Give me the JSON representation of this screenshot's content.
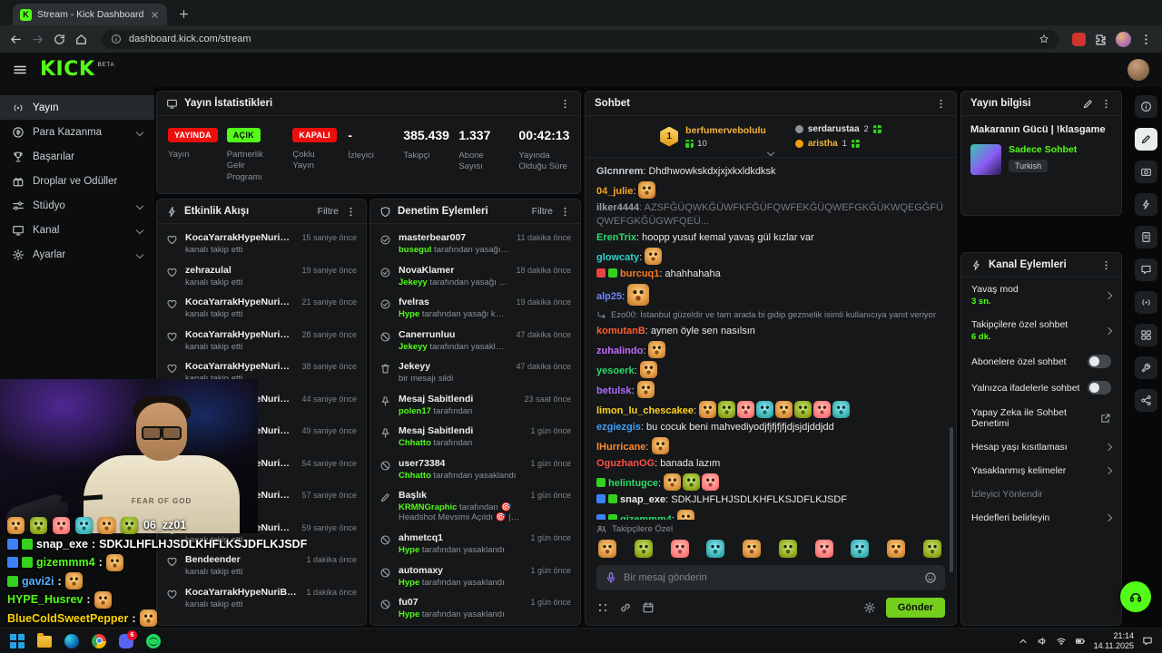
{
  "browser": {
    "favicon_letter": "K",
    "tab_title": "Stream - Kick Dashboard",
    "url": "dashboard.kick.com/stream"
  },
  "app": {
    "logo_text": "KICK",
    "logo_beta": "BETA"
  },
  "sidebar": [
    {
      "label": "Yayın",
      "icon": "signal",
      "active": true,
      "chevron": false
    },
    {
      "label": "Para Kazanma",
      "icon": "money",
      "chevron": true
    },
    {
      "label": "Başarılar",
      "icon": "trophy",
      "chevron": false
    },
    {
      "label": "Droplar ve Ödüller",
      "icon": "gift",
      "chevron": false
    },
    {
      "label": "Stüdyo",
      "icon": "sliders",
      "chevron": true
    },
    {
      "label": "Kanal",
      "icon": "monitor",
      "chevron": true
    },
    {
      "label": "Ayarlar",
      "icon": "gear",
      "chevron": true
    }
  ],
  "stats": {
    "title": "Yayın İstatistikleri",
    "items": [
      {
        "badge": "YAYINDA",
        "badge_style": "red",
        "label": "Yayın"
      },
      {
        "badge": "AÇIK",
        "badge_style": "green",
        "label": "Partnerlik Gelir Programı"
      },
      {
        "badge": "KAPALI",
        "badge_style": "red",
        "label": "Çoklu Yayın"
      },
      {
        "value": "-",
        "label": "İzleyici"
      },
      {
        "value": "385.439",
        "label": "Takipçi"
      },
      {
        "value": "1.337",
        "label": "Abone Sayısı"
      },
      {
        "value": "00:42:13",
        "label": "Yayında Olduğu Süre"
      }
    ]
  },
  "activity": {
    "title": "Etkinlik Akışı",
    "filter": "Filtre",
    "events": [
      {
        "user": "KocaYarrakHypeNuriBlush",
        "action": "kanalı takip etti",
        "time": "15 saniye önce"
      },
      {
        "user": "zehrazulal",
        "action": "kanalı takip etti",
        "time": "19 saniye önce"
      },
      {
        "user": "KocaYarrakHypeNuriBlush",
        "action": "kanalı takip etti",
        "time": "21 saniye önce"
      },
      {
        "user": "KocaYarrakHypeNuriBlush",
        "action": "kanalı takip etti",
        "time": "28 saniye önce"
      },
      {
        "user": "KocaYarrakHypeNuriBlush",
        "action": "kanalı takip etti",
        "time": "38 saniye önce"
      },
      {
        "user": "KocaYarrakHypeNuriBlush",
        "action": "kanalı takip etti",
        "time": "44 saniye önce"
      },
      {
        "user": "KocaYarrakHypeNuriBlush",
        "action": "kanalı takip etti",
        "time": "49 saniye önce"
      },
      {
        "user": "KocaYarrakHypeNuriBlush",
        "action": "kanalı takip etti",
        "time": "54 saniye önce"
      },
      {
        "user": "KocaYarrakHypeNuriBlush",
        "action": "kanalı takip etti",
        "time": "57 saniye önce"
      },
      {
        "user": "KocaYarrakHypeNuriBlush",
        "action": "kanalı takip etti",
        "time": "59 saniye önce"
      },
      {
        "user": "Bendeender",
        "action": "kanalı takip etti",
        "time": "1 dakika önce"
      },
      {
        "user": "KocaYarrakHypeNuriBlush",
        "action": "kanalı takip etti",
        "time": "1 dakika önce"
      }
    ]
  },
  "moderation": {
    "title": "Denetim Eylemleri",
    "filter": "Filtre",
    "events": [
      {
        "icon": "unban",
        "user": "masterbear007",
        "by": "busegul",
        "desc": "tarafından yasağı kaldırıldı",
        "time": "11 dakika önce"
      },
      {
        "icon": "unban",
        "user": "NovaKlamer",
        "by": "Jekeyy",
        "desc": "tarafından yasağı kaldırıldı",
        "time": "18 dakika önce"
      },
      {
        "icon": "unban",
        "user": "fvelras",
        "by": "Hype",
        "desc": "tarafından yasağı kaldırıldı",
        "time": "19 dakika önce"
      },
      {
        "icon": "ban",
        "user": "Canerrunluu",
        "by": "Jekeyy",
        "desc": "tarafından yasaklandı",
        "time": "47 dakika önce"
      },
      {
        "icon": "trash",
        "user": "Jekeyy",
        "by": "",
        "desc": "bir mesajı sildi",
        "time": "47 dakika önce"
      },
      {
        "icon": "pin",
        "user": "Mesaj Sabitlendi",
        "by": "polen17",
        "desc": "tarafından",
        "time": "23 saat önce"
      },
      {
        "icon": "pin",
        "user": "Mesaj Sabitlendi",
        "by": "Chhatto",
        "desc": "tarafından",
        "time": "1 gün önce"
      },
      {
        "icon": "ban",
        "user": "user73384",
        "by": "Chhatto",
        "desc": "tarafından yasaklandı",
        "time": "1 gün önce"
      },
      {
        "icon": "pen",
        "user": "Başlık",
        "by": "KRMNGraphic",
        "desc": "tarafından 🎯 Headshot Mevsimi Açıldı 🎯 | !klasgame olarak değiştirildi",
        "time": "1 gün önce",
        "tall": true
      },
      {
        "icon": "ban",
        "user": "ahmetcq1",
        "by": "Hype",
        "desc": "tarafından yasaklandı",
        "time": "1 gün önce"
      },
      {
        "icon": "ban",
        "user": "automaxy",
        "by": "Hype",
        "desc": "tarafından yasaklandı",
        "time": "1 gün önce"
      },
      {
        "icon": "ban",
        "user": "fu07",
        "by": "Hype",
        "desc": "tarafından yasaklandı",
        "time": "1 gün önce"
      }
    ]
  },
  "chat": {
    "title": "Sohbet",
    "leaderboard": {
      "rank": "1",
      "top_user": "berfumervebolulu",
      "top_count": "10",
      "second_user": "serdarustaa",
      "second_count": "2",
      "third_user": "aristha",
      "third_count": "1"
    },
    "messages": [
      {
        "user": "Glcnnrem",
        "color": "#cdd1d3",
        "text": "Dhdhwowkskdxjxjxkxldkdksk"
      },
      {
        "user": "04_julie",
        "color": "#f5a623",
        "emotes": 1
      },
      {
        "user": "ilker4444",
        "color": "#9aa0a3",
        "text": "AZSFĞÜQWKĞÜWFKFĞÜFQWFEKĞÜQWEFGKĞÜKWQEGĞFÜQWEFGKĞÜGWFQEÜ...",
        "deleted": true
      },
      {
        "user": "ErenTrix",
        "color": "#2bd96a",
        "text": "hoopp yusuf kemal yavaş gül kızlar var"
      },
      {
        "user": "glowcaty",
        "color": "#2fd0c8",
        "emotes": 1
      },
      {
        "user": "burcuq1",
        "color": "#ff7a1f",
        "text": "ahahhahaha",
        "badges": [
          "#e8443f",
          "#34d11f"
        ]
      },
      {
        "user": "alp25",
        "color": "#6f86ff",
        "emotes": 1,
        "big": true
      },
      {
        "reply": "Ezo00: İstanbul güzeldir ve tam arada bi gidip gezmelik isimli kullanıcıya yanıt veriyor"
      },
      {
        "user": "komutanB",
        "color": "#ff5c2b",
        "text": "aynen öyle sen nasılsın"
      },
      {
        "user": "zuhalindo",
        "color": "#c06bff",
        "emotes": 1
      },
      {
        "user": "yesoerk",
        "color": "#2bd96a",
        "emotes": 1
      },
      {
        "user": "betulsk",
        "color": "#b06bff",
        "emotes": 1
      },
      {
        "user": "limon_lu_chescakee",
        "color": "#ffd21c",
        "emotes": 8
      },
      {
        "user": "ezgiezgis",
        "color": "#3fa0ff",
        "text": "bu cocuk beni mahvediyodjfjfjfjfjdjsjdjddjdd"
      },
      {
        "user": "lHurricane",
        "color": "#ff8c2b",
        "emotes": 1
      },
      {
        "user": "OguzhanOG",
        "color": "#ff4f45",
        "text": "banada lazım"
      },
      {
        "user": "helintugce",
        "color": "#2bd96a",
        "emotes": 3,
        "badges": [
          "#34d11f"
        ]
      },
      {
        "user": "snap_exe",
        "color": "#eceeee",
        "text": "SDKJLHFLHJSDLKHFLKSJDFLKJSDF",
        "badges": [
          "#3b82f6",
          "#34d11f"
        ]
      },
      {
        "user": "gizemmm4",
        "color": "#2bd96a",
        "emotes": 1,
        "badges": [
          "#3b82f6",
          "#34d11f"
        ]
      },
      {
        "user": "gavi2i",
        "color": "#4aa3ff",
        "emotes": 1,
        "badges": [
          "#34d11f"
        ]
      }
    ],
    "followers_label": "Takipçilere Özel",
    "emote_bar_count": 10,
    "input_placeholder": "Bir mesaj gönderin",
    "send_label": "Gönder"
  },
  "stream_info": {
    "title": "Yayın bilgisi",
    "stream_title": "Makaranın Gücü | !klasgame",
    "category": "Sadece Sohbet",
    "tag": "Turkish"
  },
  "channel_actions": {
    "title": "Kanal Eylemleri",
    "items": [
      {
        "label": "Yavaş mod",
        "sub": "3 sn.",
        "type": "chevron"
      },
      {
        "label": "Takipçilere özel sohbet",
        "sub": "6 dk.",
        "type": "chevron"
      },
      {
        "label": "Abonelere özel sohbet",
        "type": "toggle",
        "on": false
      },
      {
        "label": "Yalnızca ifadelerle sohbet",
        "type": "toggle",
        "on": false
      },
      {
        "label": "Yapay Zeka ile Sohbet Denetimi",
        "type": "external"
      },
      {
        "label": "Hesap yaşı kısıtlaması",
        "type": "chevron"
      },
      {
        "label": "Yasaklanmış kelimeler",
        "type": "chevron"
      },
      {
        "label": "İzleyici Yönlendir",
        "type": "none",
        "muted": true
      },
      {
        "label": "Hedefleri belirleyin",
        "type": "chevron"
      }
    ]
  },
  "right_toolbar": {
    "icons": [
      {
        "name": "info"
      },
      {
        "name": "pen",
        "active": true
      },
      {
        "name": "camera"
      },
      {
        "name": "bolt"
      },
      {
        "name": "file"
      },
      {
        "name": "chat"
      },
      {
        "name": "signal"
      },
      {
        "name": "grid"
      },
      {
        "name": "wrench"
      },
      {
        "name": "nodes"
      }
    ]
  },
  "webcam": {
    "shirt_text": "FEAR OF GOD"
  },
  "overlay_chat": {
    "lines": [
      {
        "emotes": 6,
        "trail": "06_zz01"
      },
      {
        "user": "snap_exe",
        "color": "#ffffff",
        "text": "SDKJLHFLHJSDLKHFLKSJDFLKJSDF",
        "badges": [
          "#3b82f6",
          "#34d11f"
        ]
      },
      {
        "user": "gizemmm4",
        "color": "#53fc18",
        "emotes": 1,
        "badges": [
          "#3b82f6",
          "#34d11f"
        ]
      },
      {
        "user": "gavi2i",
        "color": "#57b0ff",
        "emotes": 1,
        "badges": [
          "#34d11f"
        ]
      },
      {
        "user": "HYPE_Husrev",
        "color": "#53fc18",
        "emotes": 1
      },
      {
        "user": "BlueColdSweetPepper",
        "color": "#ffd400",
        "emotes": 1
      }
    ]
  },
  "taskbar": {
    "apps": [
      {
        "name": "start"
      },
      {
        "name": "explorer"
      },
      {
        "name": "edge"
      },
      {
        "name": "chrome"
      },
      {
        "name": "discord",
        "badge": "6"
      },
      {
        "name": "spotify"
      }
    ],
    "time": "21:14",
    "date": "14.11.2025"
  }
}
